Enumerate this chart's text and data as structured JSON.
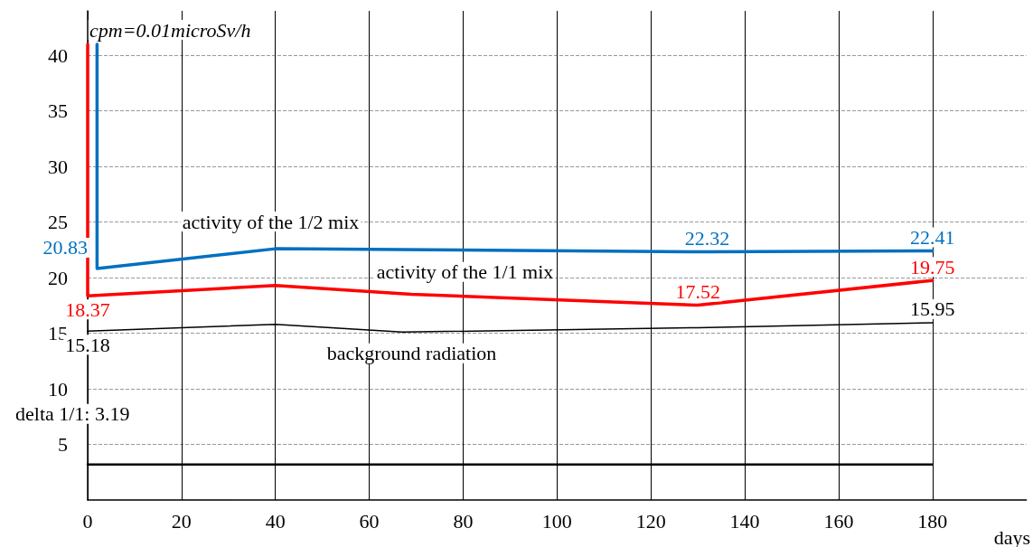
{
  "chart_data": {
    "type": "line",
    "ylabel": "cpm=0.01microSv/h",
    "xlabel": "days",
    "xlim": [
      0,
      200
    ],
    "ylim": [
      0,
      44
    ],
    "xticks": [
      0,
      20,
      40,
      60,
      80,
      100,
      120,
      140,
      160,
      180
    ],
    "yticks": [
      5,
      10,
      15,
      20,
      25,
      30,
      35,
      40
    ],
    "grid": true,
    "marker": "none",
    "line_style": "solid",
    "series": [
      {
        "name": "activity of the 1/2 mix",
        "color": "#0070c0",
        "x": [
          2,
          2,
          40,
          132,
          180
        ],
        "values": [
          41,
          20.83,
          22.6,
          22.32,
          22.41
        ],
        "value_labels": [
          null,
          "20.83",
          null,
          "22.32",
          "22.41"
        ]
      },
      {
        "name": "activity of the 1/1 mix",
        "color": "#ff0000",
        "x": [
          0,
          0,
          40,
          69,
          130,
          180
        ],
        "values": [
          41,
          18.37,
          19.3,
          18.5,
          17.52,
          19.75
        ],
        "value_labels": [
          null,
          "18.37",
          null,
          null,
          "17.52",
          "19.75"
        ]
      },
      {
        "name": "background radiation",
        "color": "#000000",
        "x": [
          0,
          40,
          67,
          130,
          180
        ],
        "values": [
          15.18,
          15.8,
          15.1,
          15.5,
          15.95
        ],
        "value_labels": [
          "15.18",
          null,
          null,
          null,
          "15.95"
        ]
      },
      {
        "color": "#000000",
        "x": [
          0,
          180
        ],
        "values": [
          3.2,
          3.2
        ]
      }
    ],
    "annotations": [
      {
        "text": "delta 1/1: 3.19",
        "x": 0,
        "y": 3.19
      }
    ]
  }
}
